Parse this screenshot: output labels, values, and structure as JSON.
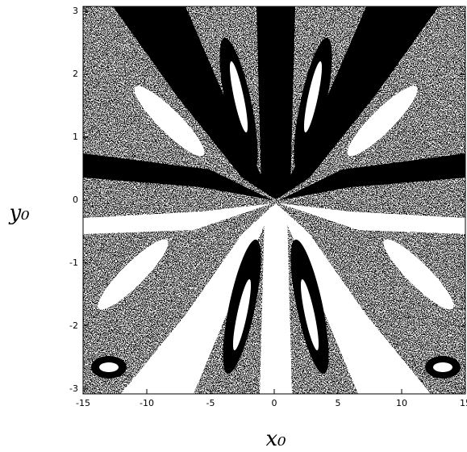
{
  "chart_data": {
    "type": "image",
    "x_label": "x₀",
    "y_label": "y₀",
    "xlim": [
      -15,
      15
    ],
    "xticks": [
      -15,
      -10,
      -5,
      0,
      5,
      10,
      15
    ],
    "ylim": [
      -3.08,
      3.08
    ],
    "yticks": [
      -3,
      -2,
      -1,
      0,
      1,
      2,
      3
    ]
  }
}
